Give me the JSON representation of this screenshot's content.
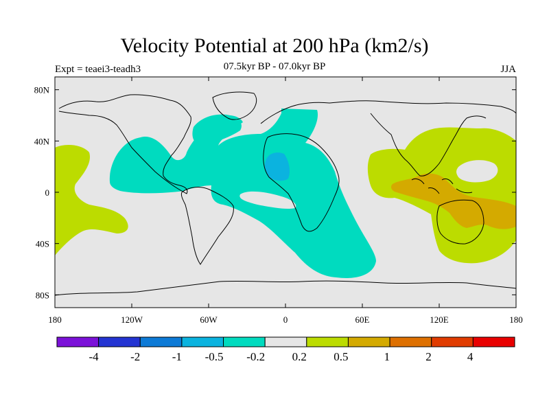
{
  "title": "Velocity Potential at 200 hPa (km2/s)",
  "subtitle": "07.5kyr BP - 07.0kyr BP",
  "expt": "Expt = teaei3-teadh3",
  "season": "JJA",
  "map": {
    "lat_ticks": [
      "80N",
      "40N",
      "0",
      "40S",
      "80S"
    ],
    "lon_ticks": [
      "180",
      "120W",
      "60W",
      "0",
      "60E",
      "120E",
      "180"
    ],
    "background_color": "#e6e6e6"
  },
  "colorbar": {
    "labels": [
      "-4",
      "-2",
      "-1",
      "-0.5",
      "-0.2",
      "0.2",
      "0.5",
      "1",
      "2",
      "4"
    ],
    "colors": [
      "#7b12d8",
      "#2434d2",
      "#0d7ad6",
      "#0bb3df",
      "#00dbbf",
      "#e6e6e6",
      "#bcdc00",
      "#d4aa00",
      "#de7000",
      "#e03c00",
      "#e80000"
    ]
  }
}
